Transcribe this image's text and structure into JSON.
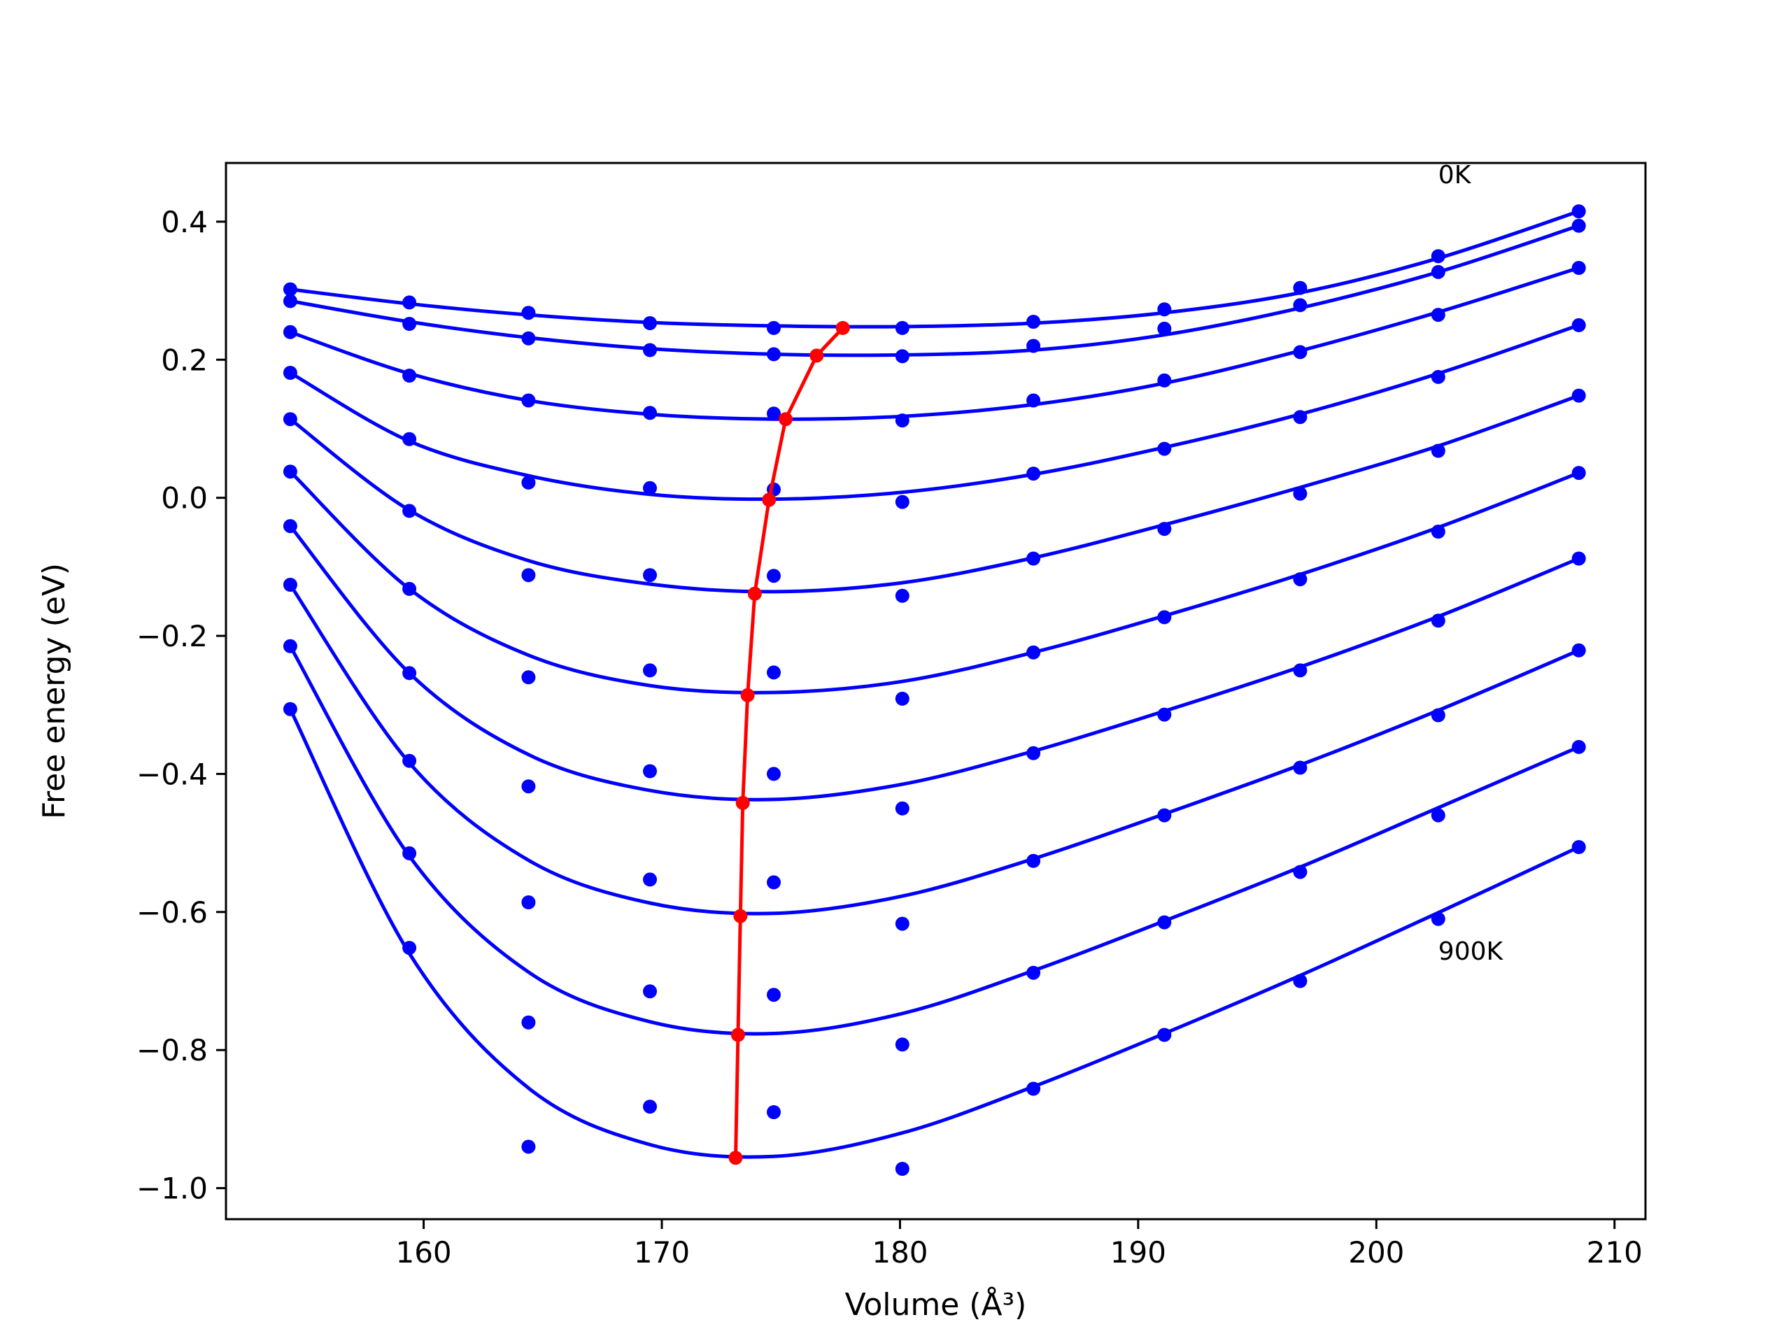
{
  "chart_data": {
    "type": "line",
    "xlabel": "Volume (Å³)",
    "ylabel": "Free energy (eV)",
    "xlim": [
      151.7,
      211.3
    ],
    "ylim": [
      -1.045,
      0.485
    ],
    "xticks": [
      160,
      170,
      180,
      190,
      200,
      210
    ],
    "yticks": [
      {
        "value": 0.4,
        "label": "0.4"
      },
      {
        "value": 0.2,
        "label": "0.2"
      },
      {
        "value": 0.0,
        "label": "0.0"
      },
      {
        "value": -0.2,
        "label": "−0.2"
      },
      {
        "value": -0.4,
        "label": "−0.4"
      },
      {
        "value": -0.6,
        "label": "−0.6"
      },
      {
        "value": -0.8,
        "label": "−0.8"
      },
      {
        "value": -1.0,
        "label": "−1.0"
      }
    ],
    "grid": false,
    "annotations": [
      {
        "text": "0K",
        "x": 202.6,
        "y": 0.47
      },
      {
        "text": "900K",
        "x": 202.6,
        "y": -0.655
      }
    ],
    "point_volumes": [
      154.4,
      159.4,
      164.4,
      169.5,
      174.7,
      180.1,
      185.6,
      191.1,
      196.8,
      202.6,
      208.5
    ],
    "series": [
      {
        "color": "#0000ff",
        "points": [
          0.302,
          0.283,
          0.268,
          0.253,
          0.246,
          0.246,
          0.255,
          0.273,
          0.304,
          0.35,
          0.415
        ],
        "fit": [
          0.302,
          0.281,
          0.265,
          0.254,
          0.249,
          0.248,
          0.253,
          0.268,
          0.297,
          0.347,
          0.415
        ]
      },
      {
        "color": "#0000ff",
        "points": [
          0.285,
          0.252,
          0.231,
          0.214,
          0.208,
          0.205,
          0.22,
          0.245,
          0.279,
          0.327,
          0.394
        ],
        "fit": [
          0.285,
          0.255,
          0.232,
          0.216,
          0.208,
          0.207,
          0.214,
          0.236,
          0.275,
          0.327,
          0.394
        ]
      },
      {
        "color": "#0000ff",
        "points": [
          0.24,
          0.177,
          0.141,
          0.123,
          0.122,
          0.112,
          0.141,
          0.17,
          0.211,
          0.265,
          0.333
        ],
        "fit": [
          0.24,
          0.18,
          0.141,
          0.121,
          0.114,
          0.118,
          0.135,
          0.166,
          0.213,
          0.269,
          0.333
        ]
      },
      {
        "color": "#0000ff",
        "points": [
          0.181,
          0.085,
          0.022,
          0.014,
          0.012,
          -0.006,
          0.035,
          0.071,
          0.117,
          0.175,
          0.25
        ],
        "fit": [
          0.181,
          0.082,
          0.032,
          0.005,
          -0.002,
          0.008,
          0.034,
          0.073,
          0.121,
          0.18,
          0.25
        ]
      },
      {
        "color": "#0000ff",
        "points": [
          0.114,
          -0.019,
          -0.112,
          -0.112,
          -0.113,
          -0.142,
          -0.088,
          -0.045,
          0.006,
          0.068,
          0.148
        ],
        "fit": [
          0.114,
          -0.018,
          -0.091,
          -0.125,
          -0.136,
          -0.123,
          -0.087,
          -0.039,
          0.015,
          0.075,
          0.148
        ]
      },
      {
        "color": "#0000ff",
        "points": [
          0.038,
          -0.132,
          -0.26,
          -0.25,
          -0.253,
          -0.291,
          -0.224,
          -0.173,
          -0.118,
          -0.049,
          0.036
        ],
        "fit": [
          0.038,
          -0.132,
          -0.228,
          -0.272,
          -0.282,
          -0.266,
          -0.224,
          -0.171,
          -0.111,
          -0.043,
          0.036
        ]
      },
      {
        "color": "#0000ff",
        "points": [
          -0.041,
          -0.254,
          -0.418,
          -0.396,
          -0.4,
          -0.45,
          -0.37,
          -0.314,
          -0.25,
          -0.178,
          -0.088
        ],
        "fit": [
          -0.041,
          -0.254,
          -0.372,
          -0.424,
          -0.437,
          -0.415,
          -0.367,
          -0.309,
          -0.245,
          -0.172,
          -0.088
        ]
      },
      {
        "color": "#0000ff",
        "points": [
          -0.126,
          -0.381,
          -0.586,
          -0.553,
          -0.557,
          -0.617,
          -0.526,
          -0.46,
          -0.391,
          -0.315,
          -0.221
        ],
        "fit": [
          -0.126,
          -0.384,
          -0.525,
          -0.587,
          -0.602,
          -0.577,
          -0.523,
          -0.458,
          -0.387,
          -0.308,
          -0.221
        ]
      },
      {
        "color": "#0000ff",
        "points": [
          -0.215,
          -0.515,
          -0.76,
          -0.715,
          -0.72,
          -0.792,
          -0.688,
          -0.615,
          -0.542,
          -0.46,
          -0.361
        ],
        "fit": [
          -0.215,
          -0.519,
          -0.687,
          -0.759,
          -0.776,
          -0.747,
          -0.685,
          -0.613,
          -0.535,
          -0.449,
          -0.361
        ]
      },
      {
        "color": "#0000ff",
        "points": [
          -0.306,
          -0.652,
          -0.94,
          -0.882,
          -0.89,
          -0.972,
          -0.856,
          -0.778,
          -0.7,
          -0.61,
          -0.506
        ],
        "fit": [
          -0.306,
          -0.66,
          -0.855,
          -0.937,
          -0.954,
          -0.92,
          -0.853,
          -0.776,
          -0.692,
          -0.601,
          -0.506
        ]
      }
    ],
    "minimum_curve": {
      "color": "#ff0000",
      "x": [
        177.6,
        176.5,
        175.2,
        174.5,
        173.9,
        173.6,
        173.4,
        173.3,
        173.2,
        173.1
      ],
      "y": [
        0.246,
        0.206,
        0.114,
        -0.003,
        -0.139,
        -0.286,
        -0.442,
        -0.606,
        -0.778,
        -0.956
      ]
    }
  }
}
